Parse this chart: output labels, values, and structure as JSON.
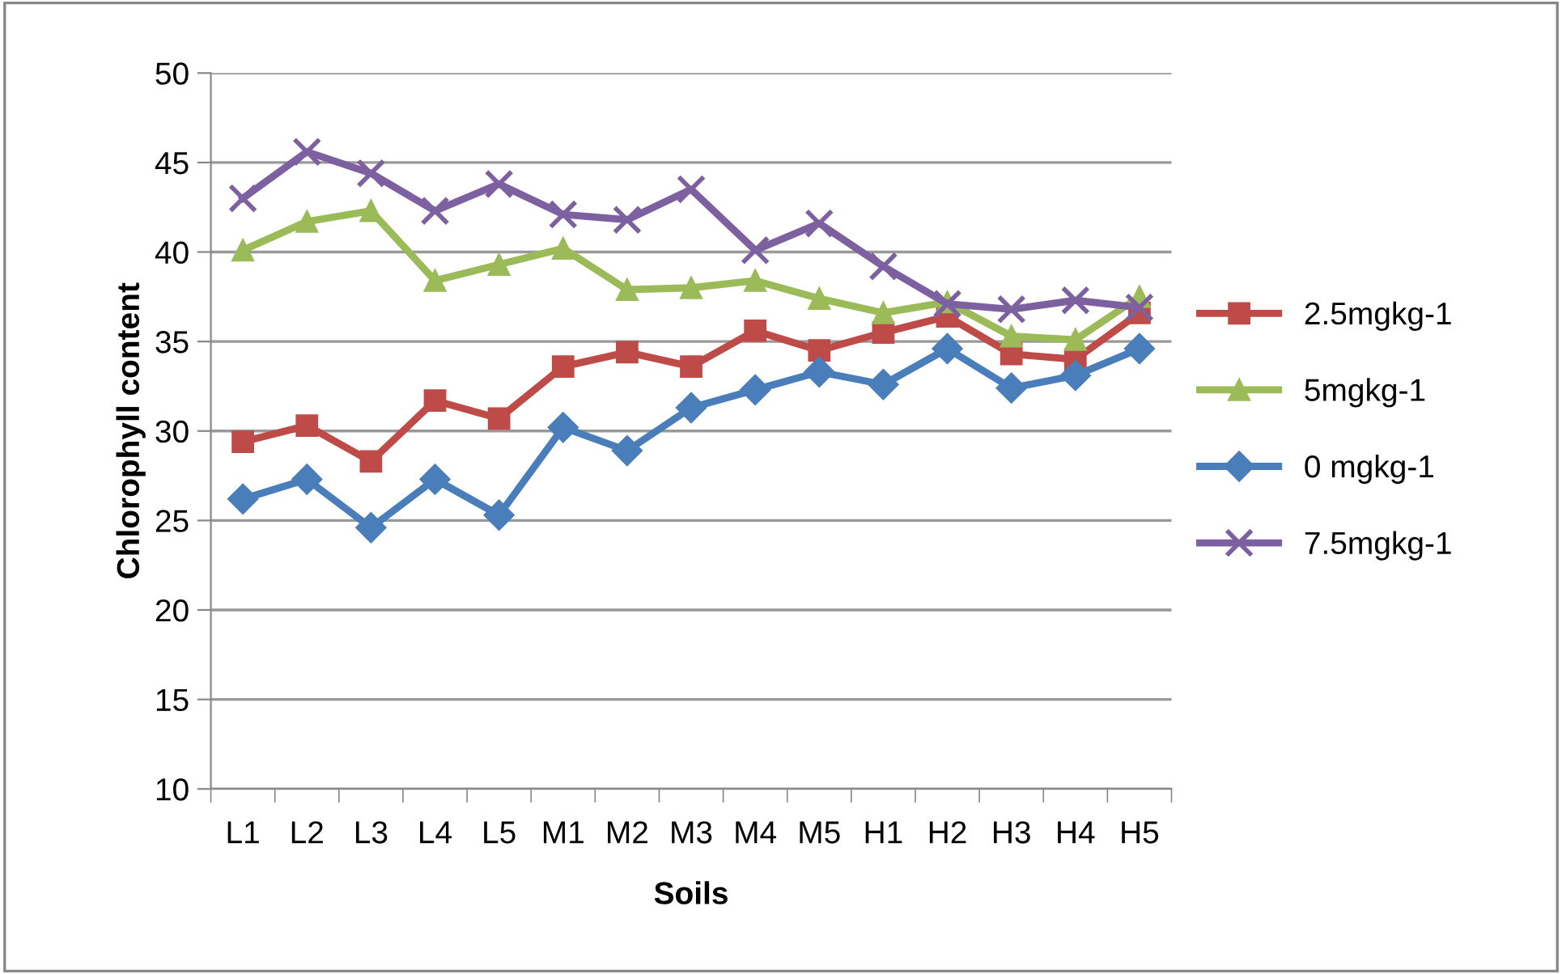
{
  "chart_data": {
    "type": "line",
    "xlabel": "Soils",
    "ylabel": "Chlorophyll content",
    "categories": [
      "L1",
      "L2",
      "L3",
      "L4",
      "L5",
      "M1",
      "M2",
      "M3",
      "M4",
      "M5",
      "H1",
      "H2",
      "H3",
      "H4",
      "H5"
    ],
    "series": [
      {
        "name": "2.5mgkg-1",
        "color": "#be4b48",
        "marker": "square",
        "values": [
          29.4,
          30.3,
          28.3,
          31.7,
          30.7,
          33.6,
          34.4,
          33.6,
          35.6,
          34.5,
          35.5,
          36.4,
          34.3,
          34.0,
          36.6
        ]
      },
      {
        "name": "5mgkg-1",
        "color": "#9bbb59",
        "marker": "triangle",
        "values": [
          40.1,
          41.7,
          42.3,
          38.4,
          39.3,
          40.2,
          37.9,
          38.0,
          38.4,
          37.4,
          36.6,
          37.2,
          35.3,
          35.1,
          37.5
        ]
      },
      {
        "name": "0 mgkg-1",
        "color": "#4a7ebb",
        "marker": "diamond",
        "values": [
          26.2,
          27.3,
          24.6,
          27.3,
          25.3,
          30.2,
          28.9,
          31.3,
          32.3,
          33.3,
          32.6,
          34.6,
          32.4,
          33.1,
          34.6
        ]
      },
      {
        "name": "7.5mgkg-1",
        "color": "#7d60a0",
        "marker": "cross",
        "values": [
          43.0,
          45.6,
          44.4,
          42.3,
          43.8,
          42.1,
          41.8,
          43.5,
          40.1,
          41.6,
          39.2,
          37.1,
          36.8,
          37.3,
          36.9
        ]
      }
    ],
    "ylim": [
      10,
      50
    ],
    "yticks": [
      10,
      15,
      20,
      25,
      30,
      35,
      40,
      45,
      50
    ],
    "grid": "y",
    "legend": "right"
  }
}
